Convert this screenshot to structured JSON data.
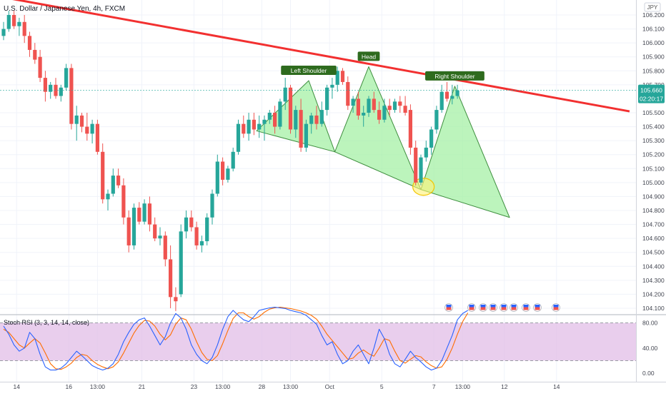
{
  "header": {
    "symbol_title": "U.S. Dollar / Japanese Yen, 4h, FXCM",
    "currency_badge": "JPY"
  },
  "indicator": {
    "label": "Stoch RSI (3, 3, 14, 14, close)",
    "levels": [
      80,
      20
    ],
    "y_ticks": [
      {
        "value": 80,
        "label": "80.00"
      },
      {
        "value": 40,
        "label": "40.00"
      },
      {
        "value": 0,
        "label": "0.00"
      }
    ],
    "colors": {
      "k": "#2962ff",
      "d": "#ff6d00",
      "band": "#e1bee7"
    },
    "k_values": [
      75,
      62,
      45,
      35,
      40,
      65,
      55,
      30,
      10,
      5,
      5,
      8,
      15,
      25,
      35,
      28,
      20,
      12,
      8,
      5,
      8,
      15,
      30,
      50,
      65,
      78,
      85,
      88,
      75,
      60,
      45,
      58,
      80,
      95,
      88,
      70,
      45,
      30,
      20,
      15,
      25,
      45,
      70,
      90,
      100,
      92,
      85,
      82,
      90,
      100,
      102,
      104,
      105,
      104,
      103,
      100,
      98,
      96,
      92,
      85,
      78,
      60,
      45,
      50,
      30,
      15,
      20,
      35,
      45,
      30,
      15,
      40,
      70,
      55,
      30,
      15,
      10,
      22,
      35,
      25,
      18,
      10,
      5,
      8,
      20,
      40,
      60,
      85,
      95,
      100
    ],
    "d_values": [
      70,
      65,
      55,
      45,
      40,
      48,
      55,
      48,
      32,
      15,
      7,
      6,
      10,
      16,
      25,
      30,
      28,
      20,
      14,
      10,
      7,
      10,
      18,
      32,
      48,
      64,
      76,
      84,
      83,
      75,
      62,
      53,
      61,
      78,
      88,
      85,
      70,
      50,
      33,
      22,
      20,
      28,
      47,
      68,
      87,
      96,
      96,
      90,
      86,
      90,
      97,
      102,
      104,
      105,
      104,
      103,
      101,
      99,
      96,
      92,
      86,
      75,
      62,
      52,
      42,
      32,
      22,
      24,
      32,
      37,
      31,
      27,
      40,
      55,
      52,
      35,
      20,
      16,
      22,
      28,
      26,
      18,
      12,
      8,
      10,
      22,
      40,
      62,
      82,
      96
    ]
  },
  "chart_data": {
    "type": "candlestick",
    "title": "U.S. Dollar / Japanese Yen, 4h, FXCM",
    "instrument": "USD/JPY",
    "timeframe": "4h",
    "source": "FXCM",
    "currency": "JPY",
    "ylim": [
      104.05,
      106.25
    ],
    "y_ticks": [
      106.2,
      106.1,
      106.0,
      105.9,
      105.8,
      105.7,
      105.5,
      105.4,
      105.3,
      105.2,
      105.1,
      105.0,
      104.9,
      104.8,
      104.7,
      104.6,
      104.5,
      104.4,
      104.3,
      104.2,
      104.1
    ],
    "x_ticks": [
      {
        "label": "14",
        "index": 2.5
      },
      {
        "label": "16",
        "index": 12.5
      },
      {
        "label": "13:00",
        "index": 18
      },
      {
        "label": "21",
        "index": 26.5
      },
      {
        "label": "23",
        "index": 36.5
      },
      {
        "label": "13:00",
        "index": 42
      },
      {
        "label": "28",
        "index": 49.5
      },
      {
        "label": "13:00",
        "index": 55
      },
      {
        "label": "Oct",
        "index": 62.5
      },
      {
        "label": "5",
        "index": 72.5
      },
      {
        "label": "7",
        "index": 82.5
      },
      {
        "label": "13:00",
        "index": 88
      },
      {
        "label": "12",
        "index": 96
      },
      {
        "label": "14",
        "index": 106
      }
    ],
    "last_price": {
      "value": 105.66,
      "label": "105.660",
      "countdown": "02:20:17"
    },
    "colors": {
      "up": "#26a69a",
      "down": "#ef5350",
      "trendline": "#f23030",
      "pattern_fill": "#a5f0a5",
      "pattern_stroke": "#3e8e3e"
    },
    "candles": [
      [
        106.05,
        106.15,
        106.02,
        106.1
      ],
      [
        106.1,
        106.23,
        106.08,
        106.2
      ],
      [
        106.2,
        106.23,
        106.1,
        106.12
      ],
      [
        106.12,
        106.18,
        106.05,
        106.15
      ],
      [
        106.15,
        106.2,
        106.0,
        106.05
      ],
      [
        106.05,
        106.08,
        105.9,
        105.95
      ],
      [
        105.95,
        106.0,
        105.85,
        105.88
      ],
      [
        105.9,
        105.95,
        105.72,
        105.75
      ],
      [
        105.75,
        105.8,
        105.58,
        105.65
      ],
      [
        105.65,
        105.72,
        105.6,
        105.7
      ],
      [
        105.7,
        105.75,
        105.6,
        105.62
      ],
      [
        105.62,
        105.7,
        105.58,
        105.68
      ],
      [
        105.68,
        105.85,
        105.66,
        105.82
      ],
      [
        105.82,
        105.85,
        105.38,
        105.42
      ],
      [
        105.42,
        105.55,
        105.3,
        105.48
      ],
      [
        105.48,
        105.5,
        105.36,
        105.4
      ],
      [
        105.4,
        105.5,
        105.3,
        105.35
      ],
      [
        105.35,
        105.45,
        105.28,
        105.42
      ],
      [
        105.42,
        105.45,
        105.2,
        105.22
      ],
      [
        105.22,
        105.28,
        104.85,
        104.88
      ],
      [
        104.88,
        104.95,
        104.8,
        104.92
      ],
      [
        104.92,
        105.1,
        104.9,
        105.05
      ],
      [
        105.05,
        105.1,
        104.96,
        104.98
      ],
      [
        104.98,
        105.03,
        104.7,
        104.75
      ],
      [
        104.75,
        104.8,
        104.5,
        104.55
      ],
      [
        104.55,
        104.85,
        104.52,
        104.82
      ],
      [
        104.82,
        104.86,
        104.7,
        104.72
      ],
      [
        104.72,
        104.88,
        104.7,
        104.85
      ],
      [
        104.85,
        104.9,
        104.65,
        104.7
      ],
      [
        104.7,
        104.75,
        104.58,
        104.6
      ],
      [
        104.6,
        104.68,
        104.55,
        104.62
      ],
      [
        104.62,
        104.65,
        104.4,
        104.45
      ],
      [
        104.45,
        104.55,
        104.1,
        104.18
      ],
      [
        104.18,
        104.25,
        104.08,
        104.15
      ],
      [
        104.2,
        104.7,
        104.18,
        104.65
      ],
      [
        104.65,
        104.8,
        104.6,
        104.75
      ],
      [
        104.75,
        104.8,
        104.65,
        104.68
      ],
      [
        104.68,
        104.72,
        104.52,
        104.55
      ],
      [
        104.55,
        104.62,
        104.5,
        104.58
      ],
      [
        104.58,
        104.78,
        104.55,
        104.75
      ],
      [
        104.75,
        104.95,
        104.7,
        104.92
      ],
      [
        104.92,
        105.2,
        104.9,
        105.15
      ],
      [
        105.15,
        105.18,
        104.98,
        105.02
      ],
      [
        105.02,
        105.12,
        105.0,
        105.1
      ],
      [
        105.1,
        105.25,
        105.08,
        105.22
      ],
      [
        105.22,
        105.45,
        105.2,
        105.42
      ],
      [
        105.42,
        105.48,
        105.32,
        105.35
      ],
      [
        105.35,
        105.5,
        105.3,
        105.45
      ],
      [
        105.45,
        105.5,
        105.34,
        105.38
      ],
      [
        105.38,
        105.48,
        105.32,
        105.42
      ],
      [
        105.42,
        105.48,
        105.3,
        105.45
      ],
      [
        105.45,
        105.52,
        105.42,
        105.5
      ],
      [
        105.5,
        105.55,
        105.35,
        105.4
      ],
      [
        105.4,
        105.6,
        105.38,
        105.58
      ],
      [
        105.58,
        105.75,
        105.52,
        105.68
      ],
      [
        105.68,
        105.7,
        105.35,
        105.38
      ],
      [
        105.38,
        105.55,
        105.32,
        105.52
      ],
      [
        105.52,
        105.6,
        105.22,
        105.25
      ],
      [
        105.25,
        105.45,
        105.22,
        105.42
      ],
      [
        105.42,
        105.5,
        105.35,
        105.48
      ],
      [
        105.48,
        105.55,
        105.38,
        105.42
      ],
      [
        105.42,
        105.58,
        105.4,
        105.52
      ],
      [
        105.52,
        105.7,
        105.48,
        105.68
      ],
      [
        105.68,
        105.75,
        105.6,
        105.7
      ],
      [
        105.7,
        105.83,
        105.65,
        105.8
      ],
      [
        105.8,
        105.82,
        105.7,
        105.72
      ],
      [
        105.72,
        105.76,
        105.52,
        105.55
      ],
      [
        105.55,
        105.62,
        105.5,
        105.6
      ],
      [
        105.6,
        105.65,
        105.45,
        105.48
      ],
      [
        105.48,
        105.55,
        105.4,
        105.5
      ],
      [
        105.5,
        105.62,
        105.47,
        105.6
      ],
      [
        105.6,
        105.65,
        105.5,
        105.52
      ],
      [
        105.52,
        105.58,
        105.42,
        105.45
      ],
      [
        105.45,
        105.6,
        105.43,
        105.55
      ],
      [
        105.55,
        105.6,
        105.48,
        105.52
      ],
      [
        105.52,
        105.6,
        105.5,
        105.58
      ],
      [
        105.58,
        105.62,
        105.5,
        105.55
      ],
      [
        105.55,
        105.62,
        105.48,
        105.5
      ],
      [
        105.52,
        105.56,
        105.2,
        105.25
      ],
      [
        105.25,
        105.3,
        104.98,
        105.0
      ],
      [
        105.0,
        105.2,
        104.98,
        105.18
      ],
      [
        105.18,
        105.3,
        105.15,
        105.25
      ],
      [
        105.25,
        105.4,
        105.2,
        105.38
      ],
      [
        105.38,
        105.55,
        105.35,
        105.52
      ],
      [
        105.52,
        105.7,
        105.5,
        105.65
      ],
      [
        105.65,
        105.72,
        105.58,
        105.6
      ],
      [
        105.6,
        105.7,
        105.56,
        105.62
      ],
      [
        105.62,
        105.7,
        105.6,
        105.66
      ]
    ],
    "trendline": {
      "from": {
        "index": -2,
        "price": 106.34
      },
      "to": {
        "index": 120,
        "price": 105.51
      }
    },
    "pattern": {
      "name": "Head and Shoulders",
      "points": [
        {
          "index": 48.5,
          "price": 105.37
        },
        {
          "index": 58.5,
          "price": 105.73
        },
        {
          "index": 63.5,
          "price": 105.22
        },
        {
          "index": 70,
          "price": 105.83
        },
        {
          "index": 80,
          "price": 104.95
        },
        {
          "index": 86.5,
          "price": 105.69
        },
        {
          "index": 97,
          "price": 104.75
        }
      ],
      "labels": [
        {
          "text": "Left Shoulder",
          "index": 58.5,
          "price": 105.73
        },
        {
          "text": "Head",
          "index": 70,
          "price": 105.83
        },
        {
          "text": "Right Shoulder",
          "index": 86.5,
          "price": 105.69
        }
      ],
      "highlight": {
        "index": 80.5,
        "price": 104.97
      }
    }
  },
  "event_markers": [
    "flag-icon",
    "flag-icon",
    "flag-icon",
    "flag-icon",
    "flag-icon",
    "flag-icon",
    "flag-icon",
    "flag-icon",
    "flag-icon"
  ]
}
